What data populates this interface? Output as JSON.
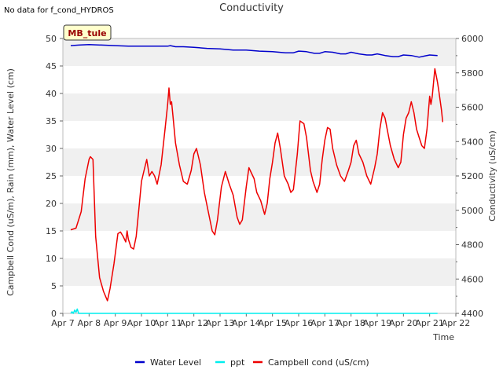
{
  "header": {
    "no_data_note": "No data for f_cond_HYDROS",
    "title": "Conductivity"
  },
  "chart_data": {
    "type": "line",
    "title": "Conductivity",
    "site_label": "MB_tule",
    "xlabel": "Time",
    "ylabel_left": "Campbell Cond (uS/m), Rain (mm), Water Level (cm)",
    "ylabel_right": "Conductivity (uS/cm)",
    "ylim_left": [
      0,
      50
    ],
    "ylim_right": [
      4400,
      6000
    ],
    "yticks_left": [
      0,
      5,
      10,
      15,
      20,
      25,
      30,
      35,
      40,
      45,
      50
    ],
    "yticks_right": [
      4400,
      4600,
      4800,
      5000,
      5200,
      5400,
      5600,
      5800,
      6000
    ],
    "x_range_days": [
      0,
      15
    ],
    "x_ticks": [
      {
        "x": 0,
        "label": "Apr 7"
      },
      {
        "x": 1,
        "label": "Apr 8"
      },
      {
        "x": 2,
        "label": "Apr 9"
      },
      {
        "x": 3,
        "label": "Apr 10"
      },
      {
        "x": 4,
        "label": "Apr 11"
      },
      {
        "x": 5,
        "label": "Apr 12"
      },
      {
        "x": 6,
        "label": "Apr 13"
      },
      {
        "x": 7,
        "label": "Apr 14"
      },
      {
        "x": 8,
        "label": "Apr 15"
      },
      {
        "x": 9,
        "label": "Apr 16"
      },
      {
        "x": 10,
        "label": "Apr 17"
      },
      {
        "x": 11,
        "label": "Apr 18"
      },
      {
        "x": 12,
        "label": "Apr 19"
      },
      {
        "x": 13,
        "label": "Apr 20"
      },
      {
        "x": 14,
        "label": "Apr 21"
      },
      {
        "x": 15,
        "label": "Apr 22"
      }
    ],
    "legend_position": "bottom-center",
    "grid": "alternating horizontal bands",
    "series": [
      {
        "name": "Water Level",
        "color": "#0000cc",
        "axis": "left",
        "points": [
          [
            0.3,
            48.7
          ],
          [
            0.6,
            48.8
          ],
          [
            1.0,
            48.9
          ],
          [
            1.5,
            48.8
          ],
          [
            2.0,
            48.7
          ],
          [
            2.5,
            48.6
          ],
          [
            3.0,
            48.6
          ],
          [
            3.5,
            48.6
          ],
          [
            4.0,
            48.6
          ],
          [
            4.1,
            48.7
          ],
          [
            4.3,
            48.5
          ],
          [
            4.6,
            48.5
          ],
          [
            5.0,
            48.4
          ],
          [
            5.5,
            48.2
          ],
          [
            6.0,
            48.1
          ],
          [
            6.5,
            47.9
          ],
          [
            7.0,
            47.9
          ],
          [
            7.5,
            47.7
          ],
          [
            8.0,
            47.6
          ],
          [
            8.5,
            47.4
          ],
          [
            8.8,
            47.4
          ],
          [
            9.0,
            47.7
          ],
          [
            9.3,
            47.6
          ],
          [
            9.6,
            47.3
          ],
          [
            9.8,
            47.3
          ],
          [
            10.0,
            47.6
          ],
          [
            10.3,
            47.5
          ],
          [
            10.6,
            47.2
          ],
          [
            10.8,
            47.2
          ],
          [
            11.0,
            47.5
          ],
          [
            11.3,
            47.2
          ],
          [
            11.6,
            47.0
          ],
          [
            11.8,
            47.0
          ],
          [
            12.0,
            47.2
          ],
          [
            12.3,
            46.9
          ],
          [
            12.6,
            46.7
          ],
          [
            12.8,
            46.7
          ],
          [
            13.0,
            47.0
          ],
          [
            13.3,
            46.9
          ],
          [
            13.6,
            46.6
          ],
          [
            13.8,
            46.8
          ],
          [
            14.0,
            47.0
          ],
          [
            14.3,
            46.9
          ]
        ]
      },
      {
        "name": "ppt",
        "color": "#00eeee",
        "axis": "left",
        "points": [
          [
            0.3,
            0
          ],
          [
            0.35,
            0.3
          ],
          [
            0.4,
            0
          ],
          [
            0.45,
            0.6
          ],
          [
            0.5,
            0.2
          ],
          [
            0.55,
            0.8
          ],
          [
            0.6,
            0
          ],
          [
            0.7,
            0
          ],
          [
            14.3,
            0
          ]
        ]
      },
      {
        "name": "Campbell cond (uS/cm)",
        "color": "#ee0000",
        "axis": "left",
        "points": [
          [
            0.3,
            15.2
          ],
          [
            0.5,
            15.5
          ],
          [
            0.7,
            18.5
          ],
          [
            0.85,
            24.5
          ],
          [
            1.0,
            28.0
          ],
          [
            1.05,
            28.5
          ],
          [
            1.15,
            28.0
          ],
          [
            1.25,
            14.0
          ],
          [
            1.4,
            6.5
          ],
          [
            1.55,
            4.0
          ],
          [
            1.7,
            2.3
          ],
          [
            1.8,
            4.5
          ],
          [
            1.95,
            9.0
          ],
          [
            2.1,
            14.5
          ],
          [
            2.2,
            14.8
          ],
          [
            2.3,
            14.0
          ],
          [
            2.4,
            13.0
          ],
          [
            2.45,
            15.0
          ],
          [
            2.5,
            13.5
          ],
          [
            2.6,
            12.0
          ],
          [
            2.7,
            11.7
          ],
          [
            2.8,
            14.0
          ],
          [
            2.9,
            19.0
          ],
          [
            3.0,
            24.0
          ],
          [
            3.1,
            26.0
          ],
          [
            3.2,
            28.0
          ],
          [
            3.3,
            25.0
          ],
          [
            3.4,
            25.8
          ],
          [
            3.5,
            25.0
          ],
          [
            3.6,
            23.5
          ],
          [
            3.75,
            27.0
          ],
          [
            3.9,
            33.5
          ],
          [
            4.0,
            38.0
          ],
          [
            4.05,
            41.0
          ],
          [
            4.1,
            38.0
          ],
          [
            4.15,
            38.5
          ],
          [
            4.2,
            36.0
          ],
          [
            4.3,
            31.0
          ],
          [
            4.45,
            27.0
          ],
          [
            4.6,
            24.0
          ],
          [
            4.75,
            23.5
          ],
          [
            4.9,
            26.0
          ],
          [
            5.0,
            29.0
          ],
          [
            5.1,
            30.0
          ],
          [
            5.25,
            27.0
          ],
          [
            5.4,
            22.0
          ],
          [
            5.55,
            18.5
          ],
          [
            5.7,
            15.0
          ],
          [
            5.8,
            14.3
          ],
          [
            5.9,
            17.0
          ],
          [
            6.05,
            23.0
          ],
          [
            6.2,
            25.8
          ],
          [
            6.35,
            23.5
          ],
          [
            6.5,
            21.5
          ],
          [
            6.65,
            17.5
          ],
          [
            6.75,
            16.2
          ],
          [
            6.85,
            17.0
          ],
          [
            7.0,
            23.0
          ],
          [
            7.1,
            26.5
          ],
          [
            7.2,
            25.5
          ],
          [
            7.3,
            24.5
          ],
          [
            7.4,
            22.0
          ],
          [
            7.55,
            20.5
          ],
          [
            7.7,
            18.0
          ],
          [
            7.8,
            20.0
          ],
          [
            7.9,
            24.5
          ],
          [
            8.0,
            27.5
          ],
          [
            8.1,
            31.0
          ],
          [
            8.2,
            32.8
          ],
          [
            8.3,
            30.0
          ],
          [
            8.45,
            25.0
          ],
          [
            8.6,
            23.5
          ],
          [
            8.7,
            22.0
          ],
          [
            8.8,
            22.5
          ],
          [
            8.95,
            29.0
          ],
          [
            9.05,
            35.0
          ],
          [
            9.2,
            34.5
          ],
          [
            9.3,
            32.0
          ],
          [
            9.45,
            26.0
          ],
          [
            9.55,
            24.0
          ],
          [
            9.7,
            22.0
          ],
          [
            9.8,
            23.5
          ],
          [
            9.9,
            28.0
          ],
          [
            10.0,
            31.5
          ],
          [
            10.1,
            33.8
          ],
          [
            10.2,
            33.5
          ],
          [
            10.3,
            30.0
          ],
          [
            10.45,
            27.0
          ],
          [
            10.6,
            25.0
          ],
          [
            10.75,
            24.0
          ],
          [
            10.9,
            26.0
          ],
          [
            11.0,
            27.5
          ],
          [
            11.1,
            30.5
          ],
          [
            11.2,
            31.5
          ],
          [
            11.3,
            29.0
          ],
          [
            11.45,
            27.5
          ],
          [
            11.6,
            25.0
          ],
          [
            11.75,
            23.5
          ],
          [
            11.9,
            26.5
          ],
          [
            12.0,
            29.0
          ],
          [
            12.1,
            33.5
          ],
          [
            12.2,
            36.5
          ],
          [
            12.3,
            35.5
          ],
          [
            12.4,
            33.0
          ],
          [
            12.5,
            30.5
          ],
          [
            12.65,
            28.0
          ],
          [
            12.8,
            26.5
          ],
          [
            12.9,
            27.5
          ],
          [
            13.0,
            32.5
          ],
          [
            13.1,
            35.5
          ],
          [
            13.2,
            36.5
          ],
          [
            13.3,
            38.5
          ],
          [
            13.4,
            36.5
          ],
          [
            13.5,
            33.5
          ],
          [
            13.6,
            32.0
          ],
          [
            13.7,
            30.5
          ],
          [
            13.8,
            30.0
          ],
          [
            13.9,
            33.5
          ],
          [
            14.0,
            39.5
          ],
          [
            14.05,
            38.0
          ],
          [
            14.1,
            39.5
          ],
          [
            14.2,
            44.5
          ],
          [
            14.3,
            42.0
          ],
          [
            14.35,
            40.5
          ],
          [
            14.45,
            37.0
          ],
          [
            14.5,
            34.8
          ]
        ]
      }
    ]
  }
}
